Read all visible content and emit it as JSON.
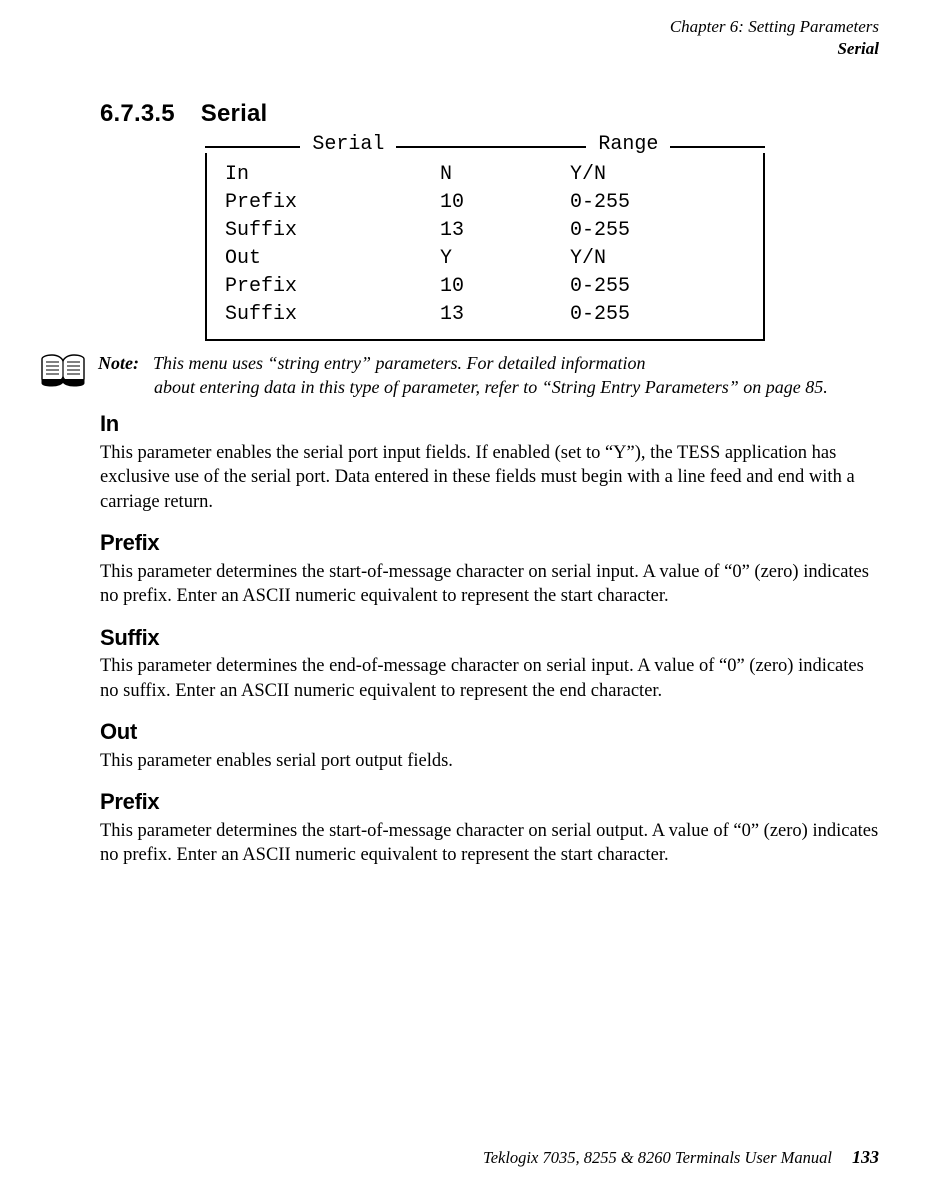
{
  "header": {
    "chapter_line": "Chapter  6:  Setting Parameters",
    "section_line": "Serial"
  },
  "heading": {
    "number": "6.7.3.5",
    "title": "Serial"
  },
  "table": {
    "legend_left": "Serial",
    "legend_right": "Range",
    "rows": [
      {
        "name": "In",
        "value": "N",
        "range": "Y/N"
      },
      {
        "name": "Prefix",
        "value": "10",
        "range": "0-255"
      },
      {
        "name": "Suffix",
        "value": "13",
        "range": "0-255"
      },
      {
        "name": "Out",
        "value": "Y",
        "range": "Y/N"
      },
      {
        "name": "Prefix",
        "value": "10",
        "range": "0-255"
      },
      {
        "name": "Suffix",
        "value": "13",
        "range": "0-255"
      }
    ]
  },
  "note": {
    "label": "Note:",
    "line1": "This menu uses “string entry” parameters. For detailed information",
    "line2": "about entering data in this type of parameter, refer to “String Entry Parameters” on page 85."
  },
  "sections": [
    {
      "title": "In",
      "body": "This parameter enables the serial port input fields. If enabled (set to “Y”), the TESS application has exclusive use of the serial port. Data entered in these fields must begin with a line feed and end with a carriage return."
    },
    {
      "title": "Prefix",
      "body": "This parameter determines the start-of-message character on serial input. A value of “0” (zero) indicates no prefix. Enter an ASCII numeric equivalent to represent the start character."
    },
    {
      "title": "Suffix",
      "body": "This parameter determines the end-of-message character on serial input. A value of “0” (zero) indicates no suffix. Enter an ASCII numeric equivalent to represent the end character."
    },
    {
      "title": "Out",
      "body": "This parameter enables serial port output fields."
    },
    {
      "title": "Prefix",
      "body": "This parameter determines the start-of-message character on serial output. A value of “0” (zero) indicates no prefix. Enter an ASCII numeric equivalent to represent the start character."
    }
  ],
  "footer": {
    "text": "Teklogix 7035, 8255 & 8260 Terminals User Manual",
    "page": "133"
  }
}
